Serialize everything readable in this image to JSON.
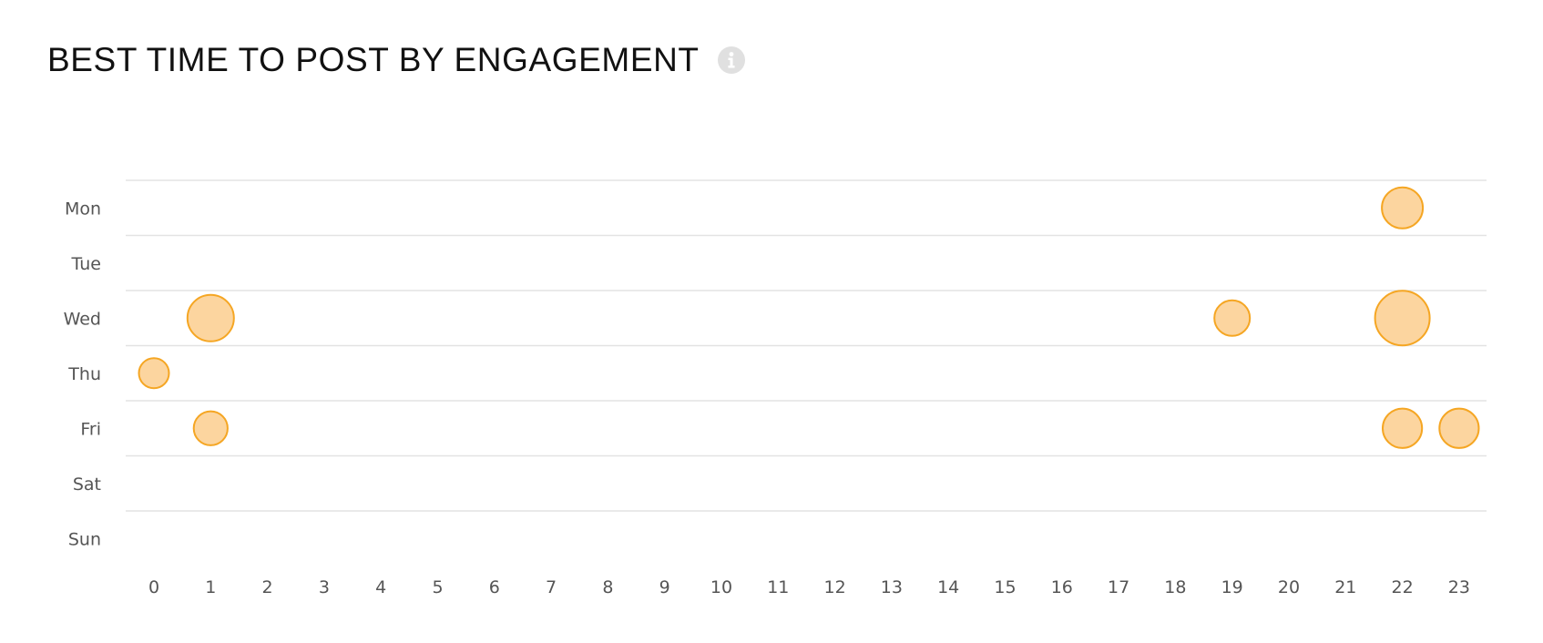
{
  "title": "BEST TIME TO POST BY ENGAGEMENT",
  "info_icon": "info-icon",
  "colors": {
    "bubble_fill": "#fcd59f",
    "bubble_stroke": "#f5a623",
    "grid": "#e3e3e3",
    "title": "#111111",
    "tick_label": "#555555",
    "info_icon": "#e0e0e0"
  },
  "chart_data": {
    "type": "scatter",
    "variant": "bubble",
    "title": "BEST TIME TO POST BY ENGAGEMENT",
    "xlabel": "",
    "ylabel": "",
    "x_categories": [
      "0",
      "1",
      "2",
      "3",
      "4",
      "5",
      "6",
      "7",
      "8",
      "9",
      "10",
      "11",
      "12",
      "13",
      "14",
      "15",
      "16",
      "17",
      "18",
      "19",
      "20",
      "21",
      "22",
      "23"
    ],
    "y_categories": [
      "Mon",
      "Tue",
      "Wed",
      "Thu",
      "Fri",
      "Sat",
      "Sun"
    ],
    "grid": true,
    "legend": "none",
    "points": [
      {
        "day": "Mon",
        "hour": 22,
        "size": 0.75
      },
      {
        "day": "Wed",
        "hour": 1,
        "size": 0.85
      },
      {
        "day": "Wed",
        "hour": 19,
        "size": 0.65
      },
      {
        "day": "Wed",
        "hour": 22,
        "size": 1.0
      },
      {
        "day": "Thu",
        "hour": 0,
        "size": 0.55
      },
      {
        "day": "Fri",
        "hour": 1,
        "size": 0.62
      },
      {
        "day": "Fri",
        "hour": 22,
        "size": 0.72
      },
      {
        "day": "Fri",
        "hour": 23,
        "size": 0.72
      }
    ]
  }
}
